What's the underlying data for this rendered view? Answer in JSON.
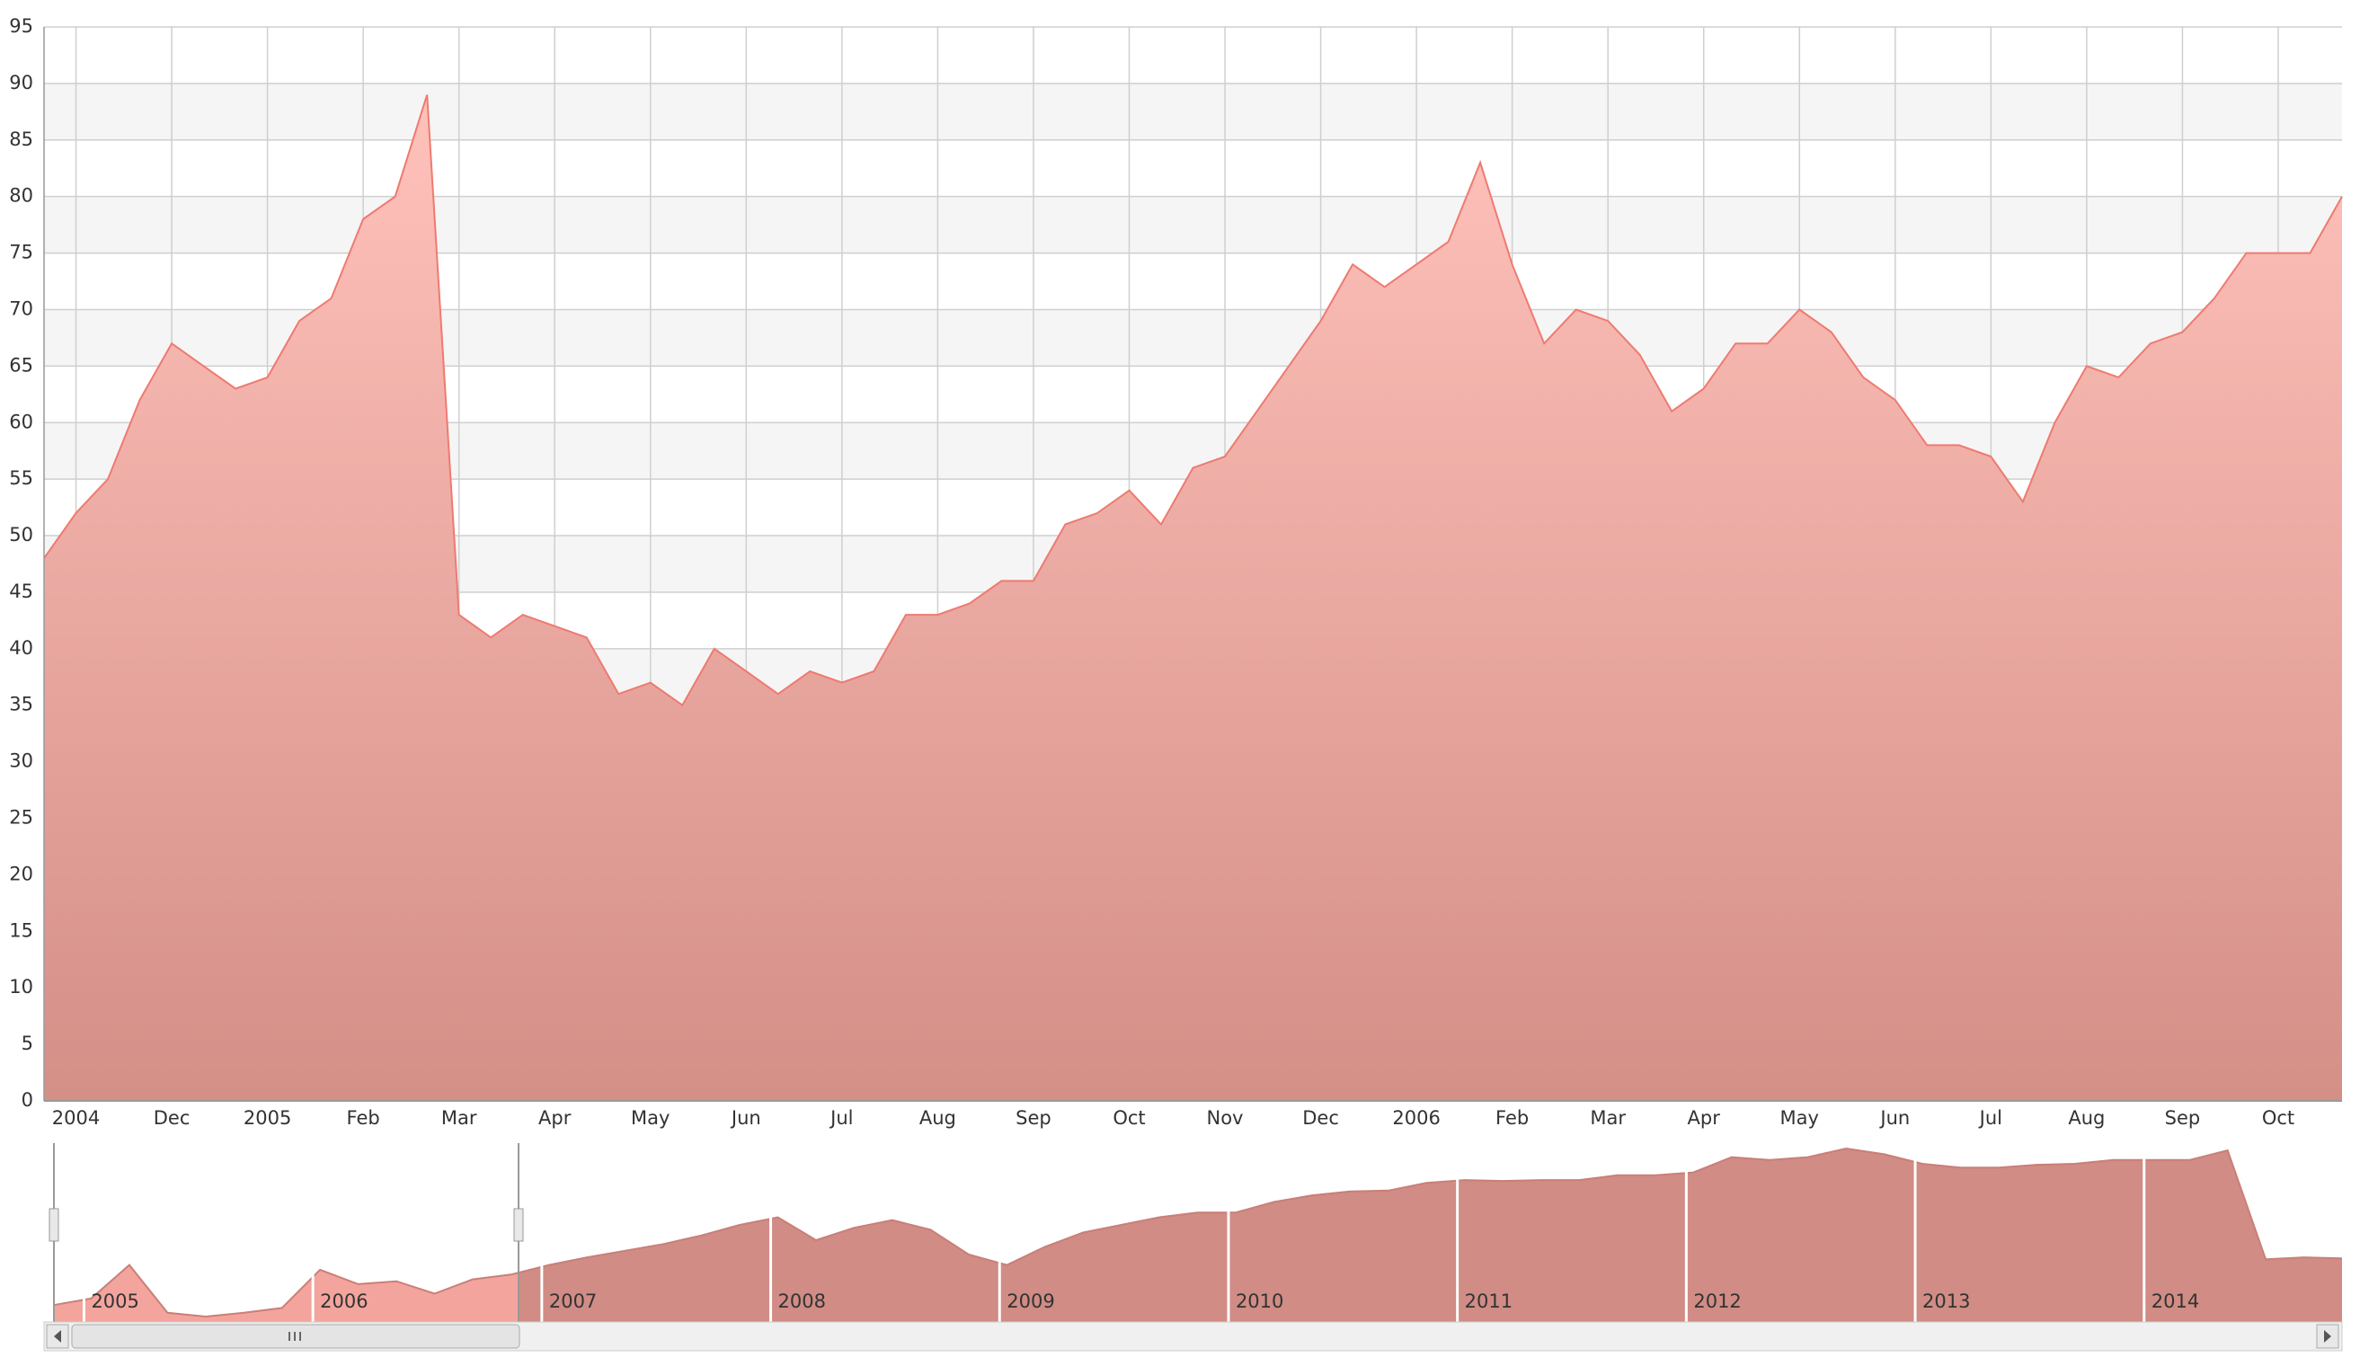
{
  "chart_data": {
    "type": "area",
    "color": "#ef7a70",
    "grid": true,
    "ylim": [
      0,
      95
    ],
    "yticks": [
      0,
      5,
      10,
      15,
      20,
      25,
      30,
      35,
      40,
      45,
      50,
      55,
      60,
      65,
      70,
      75,
      80,
      85,
      90,
      95
    ],
    "categories": [
      null,
      "2004",
      null,
      null,
      "Dec",
      null,
      null,
      "2005",
      null,
      null,
      "Feb",
      null,
      null,
      "Mar",
      null,
      null,
      "Apr",
      null,
      null,
      "May",
      null,
      null,
      "Jun",
      null,
      null,
      "Jul",
      null,
      null,
      "Aug",
      null,
      null,
      "Sep",
      null,
      null,
      "Oct",
      null,
      null,
      "Nov",
      null,
      null,
      "Dec",
      null,
      null,
      "2006",
      null,
      null,
      "Feb",
      null,
      null,
      "Mar",
      null,
      null,
      "Apr",
      null,
      null,
      "May",
      null,
      null,
      "Jun",
      null,
      null,
      "Jul",
      null,
      null,
      "Aug",
      null,
      null,
      "Sep",
      null,
      null,
      "Oct",
      null,
      null
    ],
    "values": [
      48,
      52,
      55,
      62,
      67,
      65,
      63,
      64,
      69,
      71,
      78,
      80,
      89,
      43,
      41,
      43,
      42,
      41,
      36,
      37,
      35,
      40,
      38,
      36,
      38,
      37,
      38,
      43,
      43,
      44,
      46,
      46,
      51,
      52,
      54,
      51,
      56,
      57,
      61,
      65,
      69,
      74,
      72,
      74,
      76,
      83,
      74,
      67,
      70,
      69,
      66,
      61,
      63,
      67,
      67,
      70,
      68,
      64,
      62,
      58,
      58,
      57,
      53,
      60,
      65,
      64,
      67,
      68,
      71,
      75,
      75,
      75,
      80
    ],
    "navigator": {
      "type": "area",
      "color": "#c97f78",
      "categories": [
        null,
        "2005",
        null,
        null,
        null,
        null,
        null,
        "2006",
        null,
        null,
        null,
        null,
        null,
        "2007",
        null,
        null,
        null,
        null,
        null,
        "2008",
        null,
        null,
        null,
        null,
        null,
        "2009",
        null,
        null,
        null,
        null,
        null,
        "2010",
        null,
        null,
        null,
        null,
        null,
        "2011",
        null,
        null,
        null,
        null,
        null,
        "2012",
        null,
        null,
        null,
        null,
        null,
        "2013",
        null,
        null,
        null,
        null,
        null,
        "2014",
        null,
        null,
        null,
        null,
        null
      ],
      "values": [
        48,
        55,
        90,
        40,
        36,
        40,
        45,
        85,
        70,
        73,
        60,
        75,
        80,
        90,
        98,
        105,
        112,
        121,
        132,
        140,
        116,
        129,
        137,
        127,
        101,
        90,
        109,
        124,
        132,
        140,
        145,
        145,
        156,
        163,
        167,
        168,
        176,
        179,
        178,
        179,
        179,
        184,
        184,
        187,
        203,
        200,
        203,
        212,
        206,
        196,
        192,
        192,
        195,
        196,
        200,
        200,
        200,
        210,
        96,
        98,
        97
      ]
    }
  }
}
